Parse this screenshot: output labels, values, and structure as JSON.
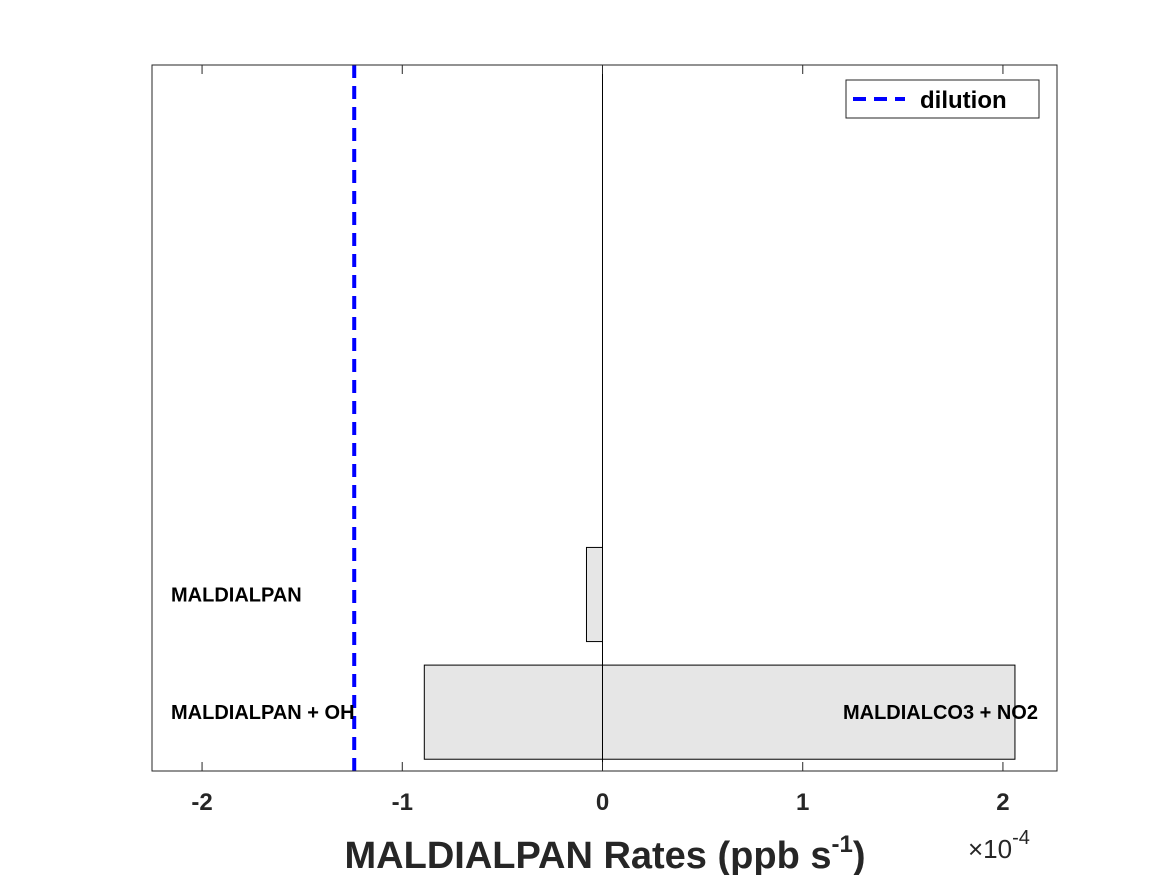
{
  "chart_data": {
    "type": "bar",
    "orientation": "horizontal",
    "stacked": true,
    "xlabel_main": "MALDIALPAN Rates (ppb s",
    "xlabel_sup": "-1",
    "xlabel_close": ")",
    "exponent_prefix": "×10",
    "exponent_power": "-4",
    "exponent_value": -4,
    "xlim": [
      -2.25,
      2.27
    ],
    "xticks": [
      -2,
      -1,
      0,
      1,
      2
    ],
    "xtick_labels": [
      "-2",
      "-1",
      "0",
      "1",
      "2"
    ],
    "categories": [
      "MALDIALPAN + OH",
      "MALDIALPAN"
    ],
    "segments": [
      {
        "category": 0,
        "start": 0,
        "end": -0.89,
        "label": "MALDIALPAN + OH",
        "label_side": "left"
      },
      {
        "category": 0,
        "start": 0,
        "end": 2.06,
        "label": "MALDIALCO3 + NO2",
        "label_side": "right"
      },
      {
        "category": 1,
        "start": 0,
        "end": -0.08,
        "label": "MALDIALPAN",
        "label_side": "left"
      }
    ],
    "dilution": {
      "x": -1.24,
      "name": "dilution",
      "color": "#0000ff"
    },
    "bar_color": "#e6e6e6",
    "legend_position": "top-right",
    "grid": false
  }
}
